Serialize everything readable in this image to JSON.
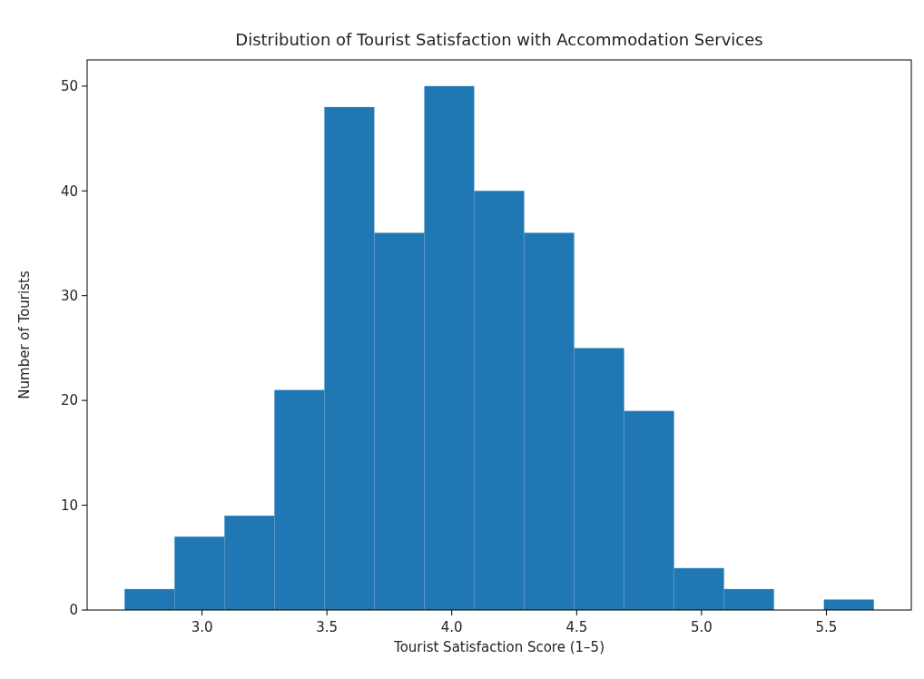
{
  "chart_data": {
    "type": "histogram",
    "title": "Distribution of Tourist Satisfaction with Accommodation Services",
    "xlabel": "Tourist Satisfaction Score (1–5)",
    "ylabel": "Number of Tourists",
    "bins": [
      2.69,
      2.89,
      3.09,
      3.29,
      3.49,
      3.69,
      3.89,
      4.09,
      4.29,
      4.49,
      4.69,
      4.89,
      5.09,
      5.29,
      5.49,
      5.69
    ],
    "values": [
      2,
      7,
      9,
      21,
      48,
      36,
      50,
      40,
      36,
      25,
      19,
      4,
      2,
      0,
      1
    ],
    "color": "#1f77b4",
    "xlim": [
      2.54,
      5.84
    ],
    "xticks": [
      {
        "value": 3,
        "label": "3.0"
      },
      {
        "value": 3.5,
        "label": "3.5"
      },
      {
        "value": 4,
        "label": "4.0"
      },
      {
        "value": 4.5,
        "label": "4.5"
      },
      {
        "value": 5,
        "label": "5.0"
      },
      {
        "value": 5.5,
        "label": "5.5"
      }
    ],
    "ylim": [
      0,
      52.5
    ],
    "yticks": [
      0,
      10,
      20,
      30,
      40,
      50
    ],
    "grid": false
  }
}
